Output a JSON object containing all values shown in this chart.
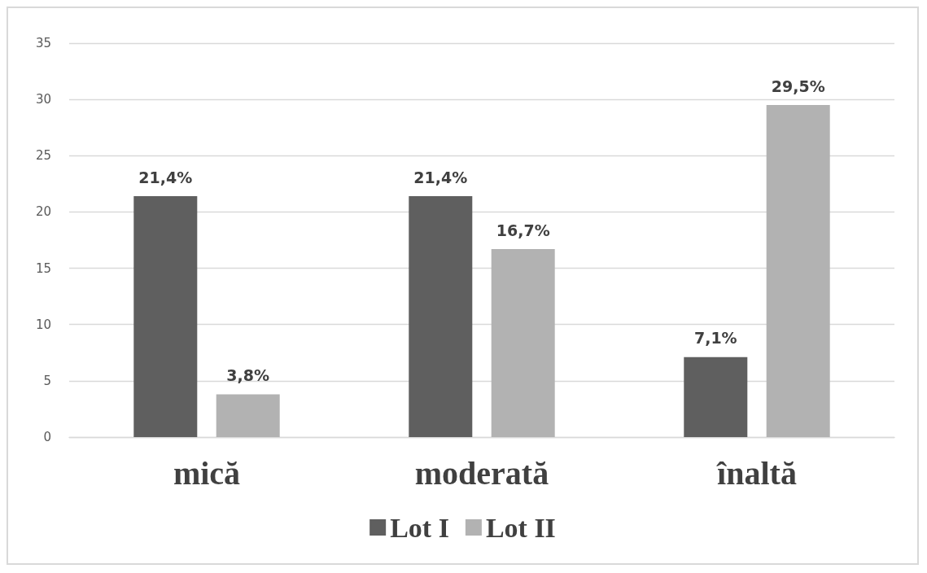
{
  "chart_data": {
    "type": "bar",
    "categories": [
      "mică",
      "moderată",
      "înaltă"
    ],
    "series": [
      {
        "name": "Lot I",
        "color": "#5f5f5f",
        "values": [
          21.4,
          21.4,
          7.1
        ],
        "value_labels": [
          "21,4%",
          "21,4%",
          "7,1%"
        ]
      },
      {
        "name": "Lot II",
        "color": "#b2b2b2",
        "values": [
          3.8,
          16.7,
          29.5
        ],
        "value_labels": [
          "3,8%",
          "16,7%",
          "29,5%"
        ]
      }
    ],
    "ylim": [
      0,
      35
    ],
    "yticks": [
      0,
      5,
      10,
      15,
      20,
      25,
      30,
      35
    ],
    "grid": "y",
    "legend": "bottom"
  }
}
